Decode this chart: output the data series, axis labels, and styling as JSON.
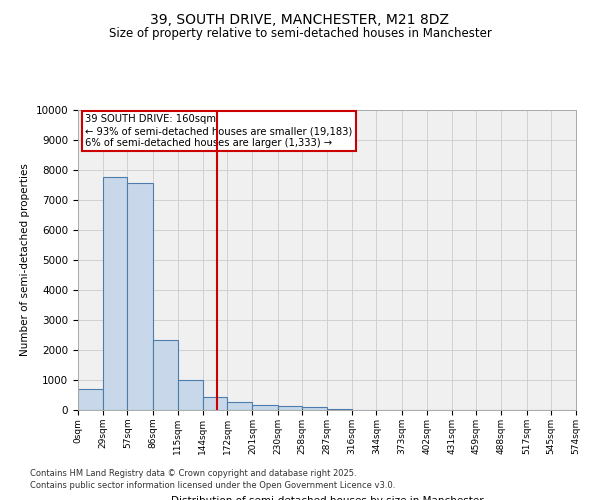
{
  "title": "39, SOUTH DRIVE, MANCHESTER, M21 8DZ",
  "subtitle": "Size of property relative to semi-detached houses in Manchester",
  "xlabel": "Distribution of semi-detached houses by size in Manchester",
  "ylabel": "Number of semi-detached properties",
  "footnote1": "Contains HM Land Registry data © Crown copyright and database right 2025.",
  "footnote2": "Contains public sector information licensed under the Open Government Licence v3.0.",
  "annotation_title": "39 SOUTH DRIVE: 160sqm",
  "annotation_line1": "← 93% of semi-detached houses are smaller (19,183)",
  "annotation_line2": "6% of semi-detached houses are larger (1,333) →",
  "property_size": 160,
  "bin_edges": [
    0,
    29,
    57,
    86,
    115,
    144,
    172,
    201,
    230,
    258,
    287,
    316,
    344,
    373,
    402,
    431,
    459,
    488,
    517,
    545,
    574
  ],
  "bar_heights": [
    700,
    7750,
    7550,
    2350,
    1000,
    450,
    275,
    175,
    150,
    100,
    30,
    10,
    5,
    3,
    2,
    1,
    1,
    0,
    0,
    0
  ],
  "bar_color": "#c8d8ea",
  "bar_edge_color": "#4d7daa",
  "vline_color": "#cc0000",
  "vline_x": 160,
  "ylim": [
    0,
    10000
  ],
  "yticks": [
    0,
    1000,
    2000,
    3000,
    4000,
    5000,
    6000,
    7000,
    8000,
    9000,
    10000
  ],
  "annotation_box_color": "#cc0000",
  "grid_color": "#cccccc",
  "bg_color": "#f0f0f0"
}
